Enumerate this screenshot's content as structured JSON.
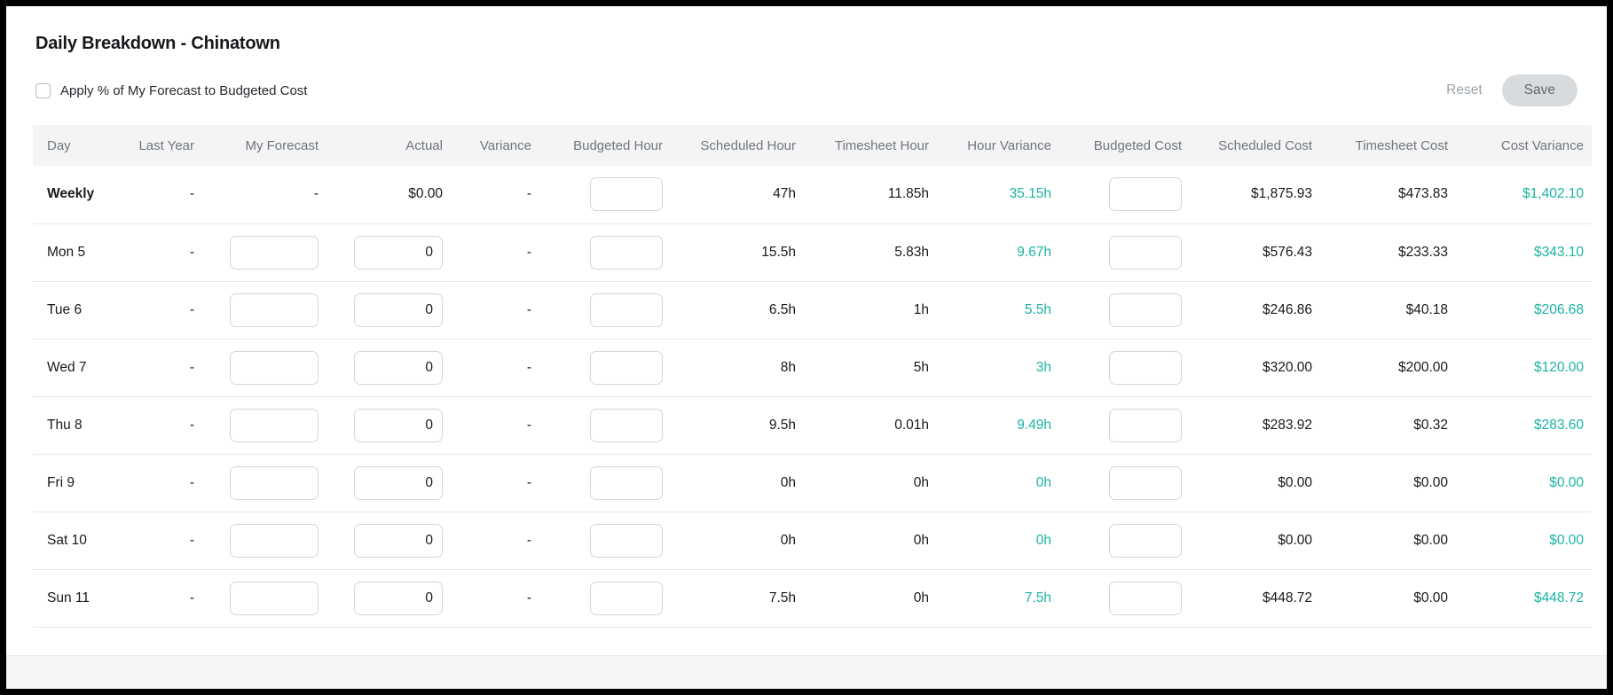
{
  "page": {
    "title": "Daily Breakdown - Chinatown",
    "checkbox_label": "Apply % of My Forecast to Budgeted Cost",
    "checkbox_checked": false,
    "reset_label": "Reset",
    "save_label": "Save"
  },
  "colors": {
    "teal": "#1bb4a3",
    "header_bg": "#f4f4f5",
    "save_button_bg": "#d8dbde"
  },
  "table": {
    "columns": [
      {
        "key": "day",
        "label": "Day"
      },
      {
        "key": "last_year",
        "label": "Last Year"
      },
      {
        "key": "my_forecast",
        "label": "My Forecast"
      },
      {
        "key": "actual",
        "label": "Actual"
      },
      {
        "key": "variance",
        "label": "Variance"
      },
      {
        "key": "budgeted_hour",
        "label": "Budgeted Hour"
      },
      {
        "key": "scheduled_hour",
        "label": "Scheduled Hour"
      },
      {
        "key": "timesheet_hour",
        "label": "Timesheet Hour"
      },
      {
        "key": "hour_variance",
        "label": "Hour Variance",
        "teal": true
      },
      {
        "key": "budgeted_cost",
        "label": "Budgeted Cost"
      },
      {
        "key": "scheduled_cost",
        "label": "Scheduled Cost"
      },
      {
        "key": "timesheet_cost",
        "label": "Timesheet Cost"
      },
      {
        "key": "cost_variance",
        "label": "Cost Variance",
        "teal": true
      }
    ],
    "rows": [
      {
        "day": "Weekly",
        "weekly": true,
        "last_year": "-",
        "my_forecast": "-",
        "actual": "$0.00",
        "variance": "-",
        "budgeted_hour": {
          "input": ""
        },
        "scheduled_hour": "47h",
        "timesheet_hour": "11.85h",
        "hour_variance": "35.15h",
        "budgeted_cost": {
          "input": ""
        },
        "scheduled_cost": "$1,875.93",
        "timesheet_cost": "$473.83",
        "cost_variance": "$1,402.10"
      },
      {
        "day": "Mon 5",
        "weekly": false,
        "last_year": "-",
        "my_forecast": {
          "input": ""
        },
        "actual": {
          "input": "0"
        },
        "variance": "-",
        "budgeted_hour": {
          "input": ""
        },
        "scheduled_hour": "15.5h",
        "timesheet_hour": "5.83h",
        "hour_variance": "9.67h",
        "budgeted_cost": {
          "input": ""
        },
        "scheduled_cost": "$576.43",
        "timesheet_cost": "$233.33",
        "cost_variance": "$343.10"
      },
      {
        "day": "Tue 6",
        "weekly": false,
        "last_year": "-",
        "my_forecast": {
          "input": ""
        },
        "actual": {
          "input": "0"
        },
        "variance": "-",
        "budgeted_hour": {
          "input": ""
        },
        "scheduled_hour": "6.5h",
        "timesheet_hour": "1h",
        "hour_variance": "5.5h",
        "budgeted_cost": {
          "input": ""
        },
        "scheduled_cost": "$246.86",
        "timesheet_cost": "$40.18",
        "cost_variance": "$206.68"
      },
      {
        "day": "Wed 7",
        "weekly": false,
        "last_year": "-",
        "my_forecast": {
          "input": ""
        },
        "actual": {
          "input": "0"
        },
        "variance": "-",
        "budgeted_hour": {
          "input": ""
        },
        "scheduled_hour": "8h",
        "timesheet_hour": "5h",
        "hour_variance": "3h",
        "budgeted_cost": {
          "input": ""
        },
        "scheduled_cost": "$320.00",
        "timesheet_cost": "$200.00",
        "cost_variance": "$120.00"
      },
      {
        "day": "Thu 8",
        "weekly": false,
        "last_year": "-",
        "my_forecast": {
          "input": ""
        },
        "actual": {
          "input": "0"
        },
        "variance": "-",
        "budgeted_hour": {
          "input": ""
        },
        "scheduled_hour": "9.5h",
        "timesheet_hour": "0.01h",
        "hour_variance": "9.49h",
        "budgeted_cost": {
          "input": ""
        },
        "scheduled_cost": "$283.92",
        "timesheet_cost": "$0.32",
        "cost_variance": "$283.60"
      },
      {
        "day": "Fri 9",
        "weekly": false,
        "last_year": "-",
        "my_forecast": {
          "input": ""
        },
        "actual": {
          "input": "0"
        },
        "variance": "-",
        "budgeted_hour": {
          "input": ""
        },
        "scheduled_hour": "0h",
        "timesheet_hour": "0h",
        "hour_variance": "0h",
        "budgeted_cost": {
          "input": ""
        },
        "scheduled_cost": "$0.00",
        "timesheet_cost": "$0.00",
        "cost_variance": "$0.00"
      },
      {
        "day": "Sat 10",
        "weekly": false,
        "last_year": "-",
        "my_forecast": {
          "input": ""
        },
        "actual": {
          "input": "0"
        },
        "variance": "-",
        "budgeted_hour": {
          "input": ""
        },
        "scheduled_hour": "0h",
        "timesheet_hour": "0h",
        "hour_variance": "0h",
        "budgeted_cost": {
          "input": ""
        },
        "scheduled_cost": "$0.00",
        "timesheet_cost": "$0.00",
        "cost_variance": "$0.00"
      },
      {
        "day": "Sun 11",
        "weekly": false,
        "last_year": "-",
        "my_forecast": {
          "input": ""
        },
        "actual": {
          "input": "0"
        },
        "variance": "-",
        "budgeted_hour": {
          "input": ""
        },
        "scheduled_hour": "7.5h",
        "timesheet_hour": "0h",
        "hour_variance": "7.5h",
        "budgeted_cost": {
          "input": ""
        },
        "scheduled_cost": "$448.72",
        "timesheet_cost": "$0.00",
        "cost_variance": "$448.72"
      }
    ]
  }
}
